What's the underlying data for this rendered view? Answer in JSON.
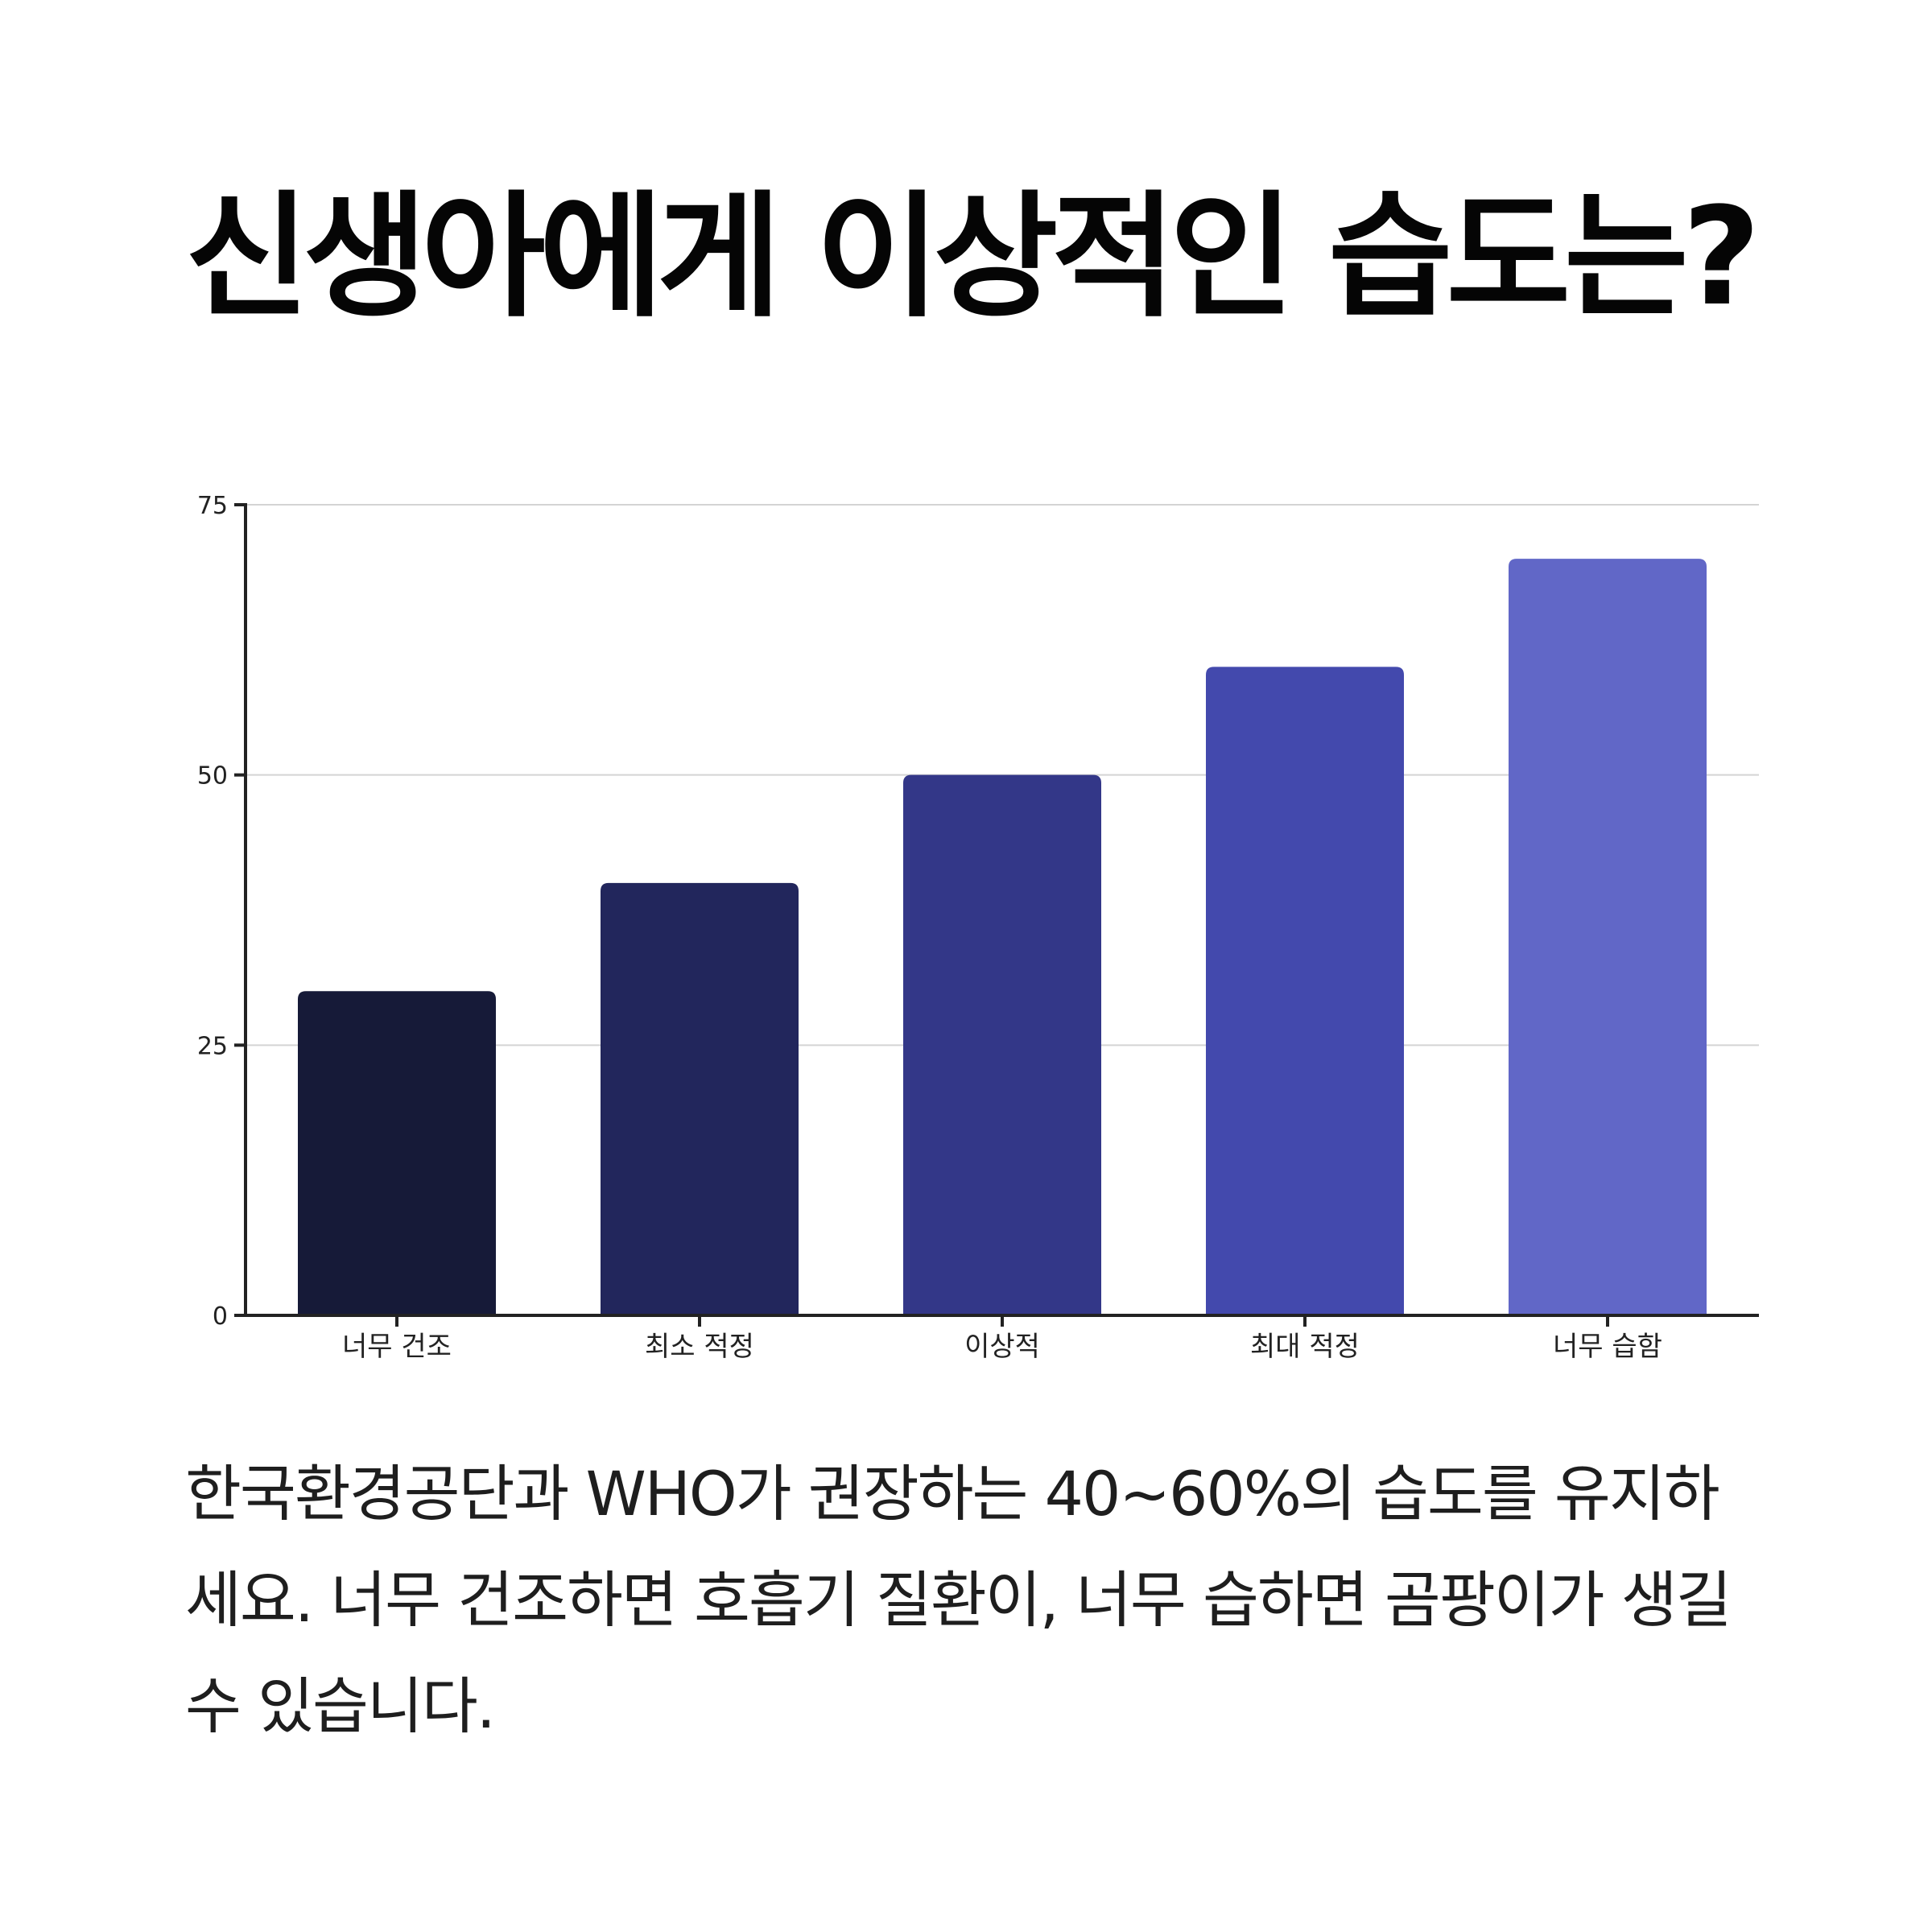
{
  "title": "신생아에게 이상적인 습도는?",
  "caption": "한국환경공단과 WHO가 권장하는 40~60%의 습도를 유지하세요. 너무 건조하면 호흡기 질환이, 너무 습하면 곰팡이가 생길 수 있습니다.",
  "chart_data": {
    "type": "bar",
    "categories": [
      "너무 건조",
      "최소 적정",
      "이상적",
      "최대 적정",
      "너무 습함"
    ],
    "values": [
      30,
      40,
      50,
      60,
      70
    ],
    "colors": [
      "#161a38",
      "#22265c",
      "#333788",
      "#4349ad",
      "#6167c7"
    ],
    "yticks": [
      0,
      25,
      50,
      75
    ],
    "ylim": [
      0,
      75
    ],
    "grid": true,
    "title": "",
    "xlabel": "",
    "ylabel": ""
  }
}
